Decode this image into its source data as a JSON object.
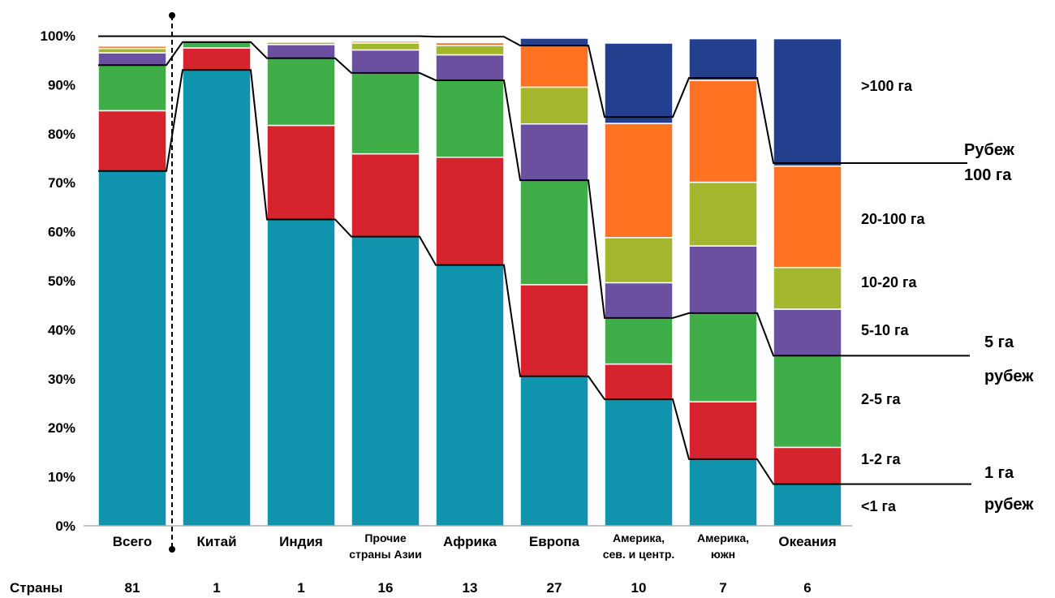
{
  "chart_data": {
    "type": "bar",
    "stacked": true,
    "ylim": [
      0,
      100
    ],
    "y_ticks": [
      "0%",
      "10%",
      "20%",
      "30%",
      "40%",
      "50%",
      "60%",
      "70%",
      "80%",
      "90%",
      "100%"
    ],
    "categories": [
      [
        "Всего"
      ],
      [
        "Китай"
      ],
      [
        "Индия"
      ],
      [
        "Прочие",
        "страны Азии"
      ],
      [
        "Африка"
      ],
      [
        "Европа"
      ],
      [
        "Америка,",
        "сев. и центр."
      ],
      [
        "Америка,",
        "южн"
      ],
      [
        "Океания"
      ]
    ],
    "series": [
      {
        "name": "<1 га",
        "color": "#1195ae",
        "values": [
          72.4,
          93.0,
          62.5,
          59.0,
          53.2,
          30.5,
          25.8,
          13.6,
          8.5
        ]
      },
      {
        "name": "1-2 га",
        "color": "#d5242d",
        "values": [
          12.3,
          4.5,
          19.2,
          16.9,
          22.0,
          18.7,
          7.2,
          11.7,
          7.5
        ]
      },
      {
        "name": "2-5 га",
        "color": "#3fae49",
        "values": [
          9.3,
          1.2,
          13.7,
          16.5,
          15.7,
          21.3,
          9.4,
          18.1,
          18.7
        ]
      },
      {
        "name": "5-10 га",
        "color": "#6b50a1",
        "values": [
          2.5,
          0.2,
          2.8,
          4.7,
          5.2,
          11.5,
          7.2,
          13.7,
          9.5
        ]
      },
      {
        "name": "10-20 га",
        "color": "#a4b52e",
        "values": [
          0.9,
          0.1,
          0.5,
          1.4,
          1.9,
          7.5,
          9.2,
          13.0,
          8.5
        ]
      },
      {
        "name": "20-100 га",
        "color": "#fd7321",
        "values": [
          0.5,
          0.3,
          0.2,
          0.4,
          0.6,
          8.5,
          23.3,
          20.8,
          20.7
        ]
      },
      {
        "name": ">100 га",
        "color": "#23408e",
        "values": [
          0.1,
          0.0,
          0.0,
          0.1,
          0.2,
          1.5,
          16.4,
          8.5,
          26.0
        ]
      }
    ],
    "legend_position": "right",
    "thresholds": [
      {
        "label": [
          "Рубеж",
          "100 га"
        ],
        "values": [
          99.9,
          99.9,
          99.9,
          99.9,
          99.8,
          98.0,
          83.4,
          91.4,
          74.0
        ]
      },
      {
        "label": [
          "5 га",
          "рубеж"
        ],
        "values": [
          94.0,
          98.7,
          95.4,
          92.4,
          90.9,
          70.5,
          42.4,
          43.4,
          34.7
        ]
      },
      {
        "label": [
          "1 га",
          "рубеж"
        ],
        "values": [
          72.4,
          93.0,
          62.5,
          59.0,
          53.2,
          30.5,
          25.8,
          13.6,
          8.5
        ]
      }
    ],
    "countries_label": "Страны",
    "countries": [
      "81",
      "1",
      "1",
      "16",
      "13",
      "27",
      "10",
      "7",
      "6"
    ]
  }
}
